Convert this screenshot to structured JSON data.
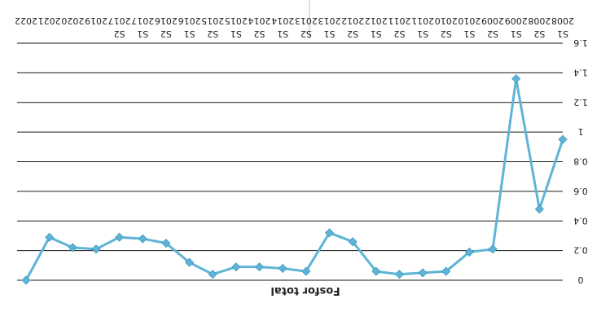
{
  "chart_data": {
    "type": "line",
    "title": "Fosfor total",
    "xlabel": "",
    "ylabel": "",
    "y_axis_reversed": true,
    "ylim": [
      0,
      1.6
    ],
    "y_ticks": [
      "0",
      "0.2",
      "0.4",
      "0.6",
      "0.8",
      "1",
      "1.2",
      "1.4",
      "1.6"
    ],
    "grid": true,
    "legend": "none",
    "line_color": "#5fb4d6",
    "marker_color": "#5fb4d6",
    "categories": [
      [
        "S1",
        "2008"
      ],
      [
        "S2",
        "2008"
      ],
      [
        "S1",
        "2009"
      ],
      [
        "S2",
        "2009"
      ],
      [
        "S1",
        "2010"
      ],
      [
        "S2",
        "2010"
      ],
      [
        "S1",
        "2011"
      ],
      [
        "S2",
        "2011"
      ],
      [
        "S1",
        "2012"
      ],
      [
        "S2",
        "2012"
      ],
      [
        "S1",
        "2013"
      ],
      [
        "S2",
        "2013"
      ],
      [
        "S1",
        "2014"
      ],
      [
        "S2",
        "2014"
      ],
      [
        "S1",
        "2015"
      ],
      [
        "S2",
        "2015"
      ],
      [
        "S1",
        "2016"
      ],
      [
        "S2",
        "2016"
      ],
      [
        "S1",
        "2017"
      ],
      [
        "S2",
        "2017"
      ],
      [
        "",
        "2019"
      ],
      [
        "",
        "2020"
      ],
      [
        "",
        "2021"
      ],
      [
        "",
        "2022"
      ]
    ],
    "values": [
      0.95,
      0.48,
      1.36,
      0.21,
      0.19,
      0.06,
      0.05,
      0.04,
      0.06,
      0.26,
      0.32,
      0.06,
      0.08,
      0.09,
      0.09,
      0.04,
      0.12,
      0.25,
      0.28,
      0.29,
      0.21,
      0.22,
      0.29,
      0.0
    ]
  }
}
